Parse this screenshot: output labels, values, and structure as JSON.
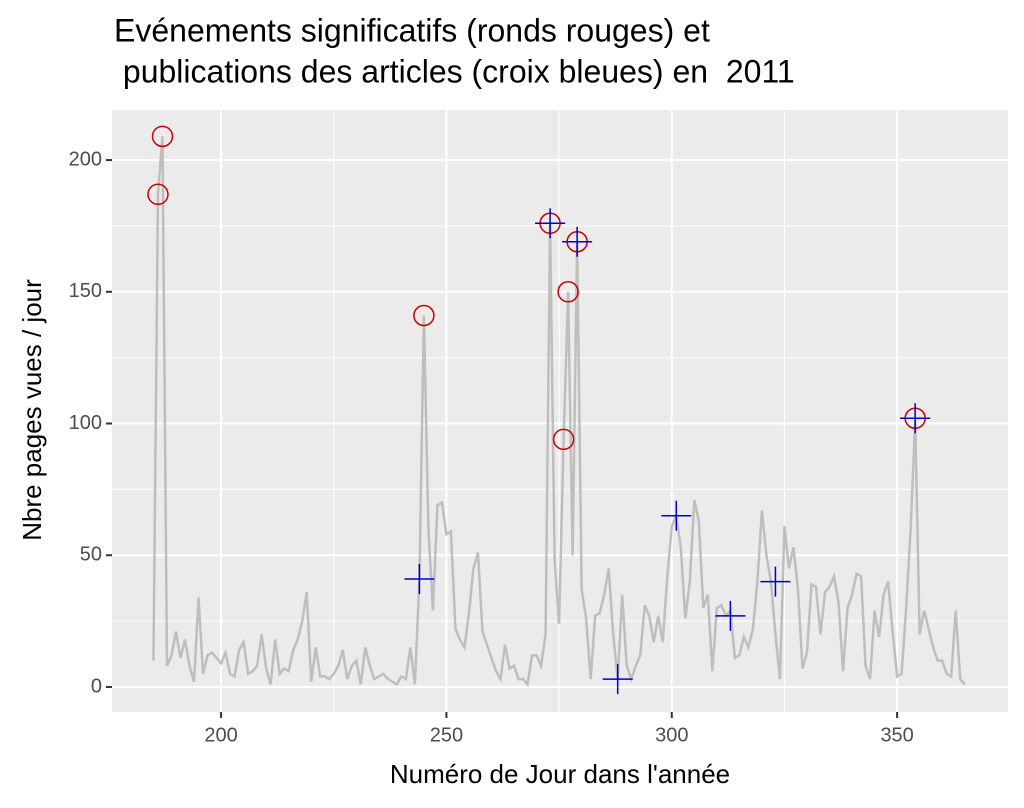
{
  "chart_data": {
    "type": "line",
    "title": [
      "Evénements significatifs (ronds rouges) et",
      " publications des articles (croix bleues) en  2011"
    ],
    "xlabel": "Numéro de Jour dans l'année",
    "ylabel": "Nbre pages vues / jour",
    "xlim": [
      175.8,
      374.6
    ],
    "ylim": [
      -9.5,
      219
    ],
    "xticks": [
      200,
      250,
      300,
      350
    ],
    "yticks": [
      0,
      50,
      100,
      150,
      200
    ],
    "x_minor_ticks": [
      225,
      275,
      325
    ],
    "y_minor_ticks": [
      25,
      75,
      125,
      175
    ],
    "grid": true,
    "background": "#ebebeb",
    "series": [
      {
        "type": "line",
        "color": "#bebebe",
        "x": [
          185,
          186,
          187,
          188,
          189,
          190,
          191,
          192,
          193,
          194,
          195,
          196,
          197,
          198,
          199,
          200,
          201,
          202,
          203,
          204,
          205,
          206,
          207,
          208,
          209,
          210,
          211,
          212,
          213,
          214,
          215,
          216,
          217,
          218,
          219,
          220,
          221,
          222,
          223,
          224,
          225,
          226,
          227,
          228,
          229,
          230,
          231,
          232,
          233,
          234,
          235,
          236,
          237,
          238,
          239,
          240,
          241,
          242,
          243,
          244,
          245,
          246,
          247,
          248,
          249,
          250,
          251,
          252,
          253,
          254,
          255,
          256,
          257,
          258,
          259,
          260,
          261,
          262,
          263,
          264,
          265,
          266,
          267,
          268,
          269,
          270,
          271,
          272,
          273,
          274,
          275,
          276,
          277,
          278,
          279,
          280,
          281,
          282,
          283,
          284,
          285,
          286,
          287,
          288,
          289,
          290,
          291,
          292,
          293,
          294,
          295,
          296,
          297,
          298,
          299,
          300,
          301,
          302,
          303,
          304,
          305,
          306,
          307,
          308,
          309,
          310,
          311,
          312,
          313,
          314,
          315,
          316,
          317,
          318,
          319,
          320,
          321,
          322,
          323,
          324,
          325,
          326,
          327,
          328,
          329,
          330,
          331,
          332,
          333,
          334,
          335,
          336,
          337,
          338,
          339,
          340,
          341,
          342,
          343,
          344,
          345,
          346,
          347,
          348,
          349,
          350,
          351,
          352,
          353,
          354,
          355,
          356,
          357,
          358,
          359,
          360,
          361,
          362,
          363,
          364,
          365
        ],
        "values": [
          10,
          187,
          209,
          8,
          12,
          21,
          11,
          18,
          8,
          2,
          34,
          5,
          12,
          13,
          11,
          9,
          13,
          5,
          4,
          14,
          17,
          5,
          6,
          8,
          20,
          7,
          1,
          18,
          5,
          7,
          6,
          14,
          18,
          25,
          36,
          2,
          15,
          4,
          4,
          3,
          5,
          8,
          14,
          3,
          8,
          10,
          1,
          15,
          8,
          3,
          4,
          5,
          3,
          2,
          1,
          4,
          3,
          15,
          1,
          40,
          141,
          60,
          29,
          69,
          70,
          58,
          59,
          22,
          18,
          15,
          28,
          45,
          51,
          21,
          16,
          11,
          6,
          3,
          16,
          7,
          8,
          3,
          3,
          1,
          12,
          12,
          8,
          20,
          176,
          48,
          24,
          94,
          150,
          50,
          169,
          37,
          26,
          3,
          27,
          28,
          35,
          45,
          20,
          3,
          35,
          8,
          3,
          8,
          12,
          31,
          27,
          17,
          27,
          17,
          42,
          61,
          65,
          53,
          26,
          40,
          71,
          63,
          30,
          35,
          6,
          30,
          31,
          27,
          29,
          11,
          12,
          19,
          15,
          22,
          40,
          67,
          50,
          40,
          20,
          3,
          61,
          45,
          53,
          37,
          7,
          13,
          39,
          38,
          20,
          36,
          38,
          42,
          32,
          6,
          30,
          35,
          43,
          42,
          8,
          3,
          29,
          19,
          35,
          40,
          21,
          4,
          5,
          30,
          60,
          101,
          20,
          29,
          22,
          15,
          10,
          10,
          5,
          4,
          29,
          3,
          1
        ]
      },
      {
        "type": "point",
        "shape": "circle",
        "color": "#cc0000",
        "x": [
          186,
          187,
          245,
          273,
          276,
          277,
          279,
          354
        ],
        "values": [
          187,
          209,
          141,
          176,
          94,
          150,
          169,
          102
        ]
      },
      {
        "type": "point",
        "shape": "cross",
        "color": "#0000cc",
        "x": [
          244,
          273,
          279,
          288,
          301,
          313,
          323,
          354
        ],
        "values": [
          41,
          176,
          169,
          3,
          65,
          27,
          40,
          102
        ]
      }
    ]
  }
}
